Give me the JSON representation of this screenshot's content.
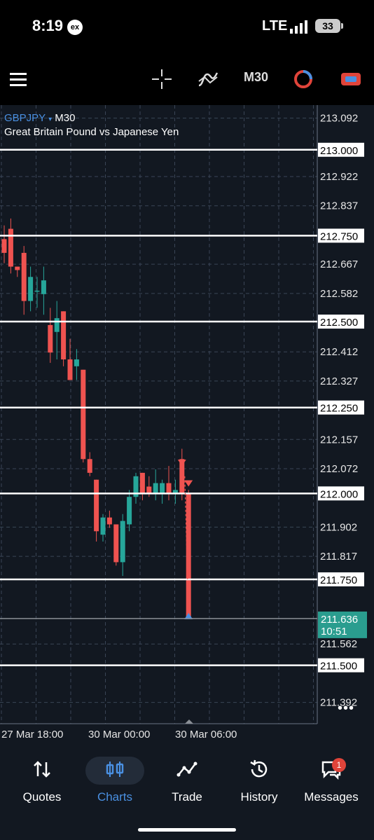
{
  "status_bar": {
    "time": "8:19",
    "app_badge": "ex",
    "network": "LTE",
    "battery": "33"
  },
  "toolbar": {
    "timeframe": "M30",
    "icons": [
      "menu-icon",
      "crosshair-icon",
      "indicators-icon",
      "timeframe",
      "chart-type-icon",
      "trade-icon"
    ]
  },
  "chart": {
    "symbol": "GBPJPY",
    "timeframe": "M30",
    "description": "Great Britain Pound vs Japanese Yen",
    "colors": {
      "bull": "#26a69a",
      "bear": "#ef5350",
      "bg": "#121821",
      "grid": "#3a4556",
      "current_price_bg": "#2a9d8f"
    },
    "price_scale": [
      "213.092",
      "212.922",
      "212.837",
      "212.667",
      "212.582",
      "212.412",
      "212.327",
      "212.157",
      "212.072",
      "211.902",
      "211.817",
      "211.562",
      "211.392"
    ],
    "levels": [
      "213.000",
      "212.750",
      "212.500",
      "212.250",
      "212.000",
      "211.750",
      "211.500"
    ],
    "current_price": {
      "value": "211.636",
      "countdown": "10:51"
    },
    "time_labels": [
      "27 Mar 18:00",
      "30 Mar 00:00",
      "30 Mar 06:00"
    ],
    "more": "•••"
  },
  "chart_data": {
    "type": "candlestick",
    "ylim": [
      211.33,
      213.13
    ],
    "levels": [
      213.0,
      212.75,
      212.5,
      212.25,
      212.0,
      211.75,
      211.5
    ],
    "candles": [
      {
        "o": 212.74,
        "h": 212.78,
        "l": 212.67,
        "c": 212.7
      },
      {
        "o": 212.77,
        "h": 212.8,
        "l": 212.64,
        "c": 212.66
      },
      {
        "o": 212.66,
        "h": 212.66,
        "l": 212.63,
        "c": 212.65
      },
      {
        "o": 212.7,
        "h": 212.72,
        "l": 212.52,
        "c": 212.56
      },
      {
        "o": 212.56,
        "h": 212.66,
        "l": 212.53,
        "c": 212.63
      },
      {
        "o": 212.59,
        "h": 212.63,
        "l": 212.54,
        "c": 212.59
      },
      {
        "o": 212.58,
        "h": 212.66,
        "l": 212.52,
        "c": 212.62
      },
      {
        "o": 212.49,
        "h": 212.54,
        "l": 212.38,
        "c": 212.41
      },
      {
        "o": 212.47,
        "h": 212.56,
        "l": 212.39,
        "c": 212.51
      },
      {
        "o": 212.53,
        "h": 212.53,
        "l": 212.37,
        "c": 212.39
      },
      {
        "o": 212.39,
        "h": 212.45,
        "l": 212.33,
        "c": 212.33
      },
      {
        "o": 212.37,
        "h": 212.42,
        "l": 212.33,
        "c": 212.39
      },
      {
        "o": 212.36,
        "h": 212.36,
        "l": 212.09,
        "c": 212.1
      },
      {
        "o": 212.1,
        "h": 212.12,
        "l": 212.05,
        "c": 212.06
      },
      {
        "o": 212.04,
        "h": 212.04,
        "l": 211.86,
        "c": 211.89
      },
      {
        "o": 211.88,
        "h": 211.94,
        "l": 211.86,
        "c": 211.93
      },
      {
        "o": 211.93,
        "h": 211.95,
        "l": 211.9,
        "c": 211.91
      },
      {
        "o": 211.91,
        "h": 211.91,
        "l": 211.79,
        "c": 211.8
      },
      {
        "o": 211.8,
        "h": 211.94,
        "l": 211.76,
        "c": 211.92
      },
      {
        "o": 211.91,
        "h": 212.01,
        "l": 211.89,
        "c": 211.99
      },
      {
        "o": 211.99,
        "h": 212.06,
        "l": 211.97,
        "c": 212.05
      },
      {
        "o": 212.06,
        "h": 212.06,
        "l": 211.98,
        "c": 212.0
      },
      {
        "o": 212.02,
        "h": 212.05,
        "l": 211.99,
        "c": 212.0
      },
      {
        "o": 212.0,
        "h": 212.07,
        "l": 211.98,
        "c": 212.03
      },
      {
        "o": 212.0,
        "h": 212.04,
        "l": 211.97,
        "c": 212.03
      },
      {
        "o": 212.03,
        "h": 212.08,
        "l": 211.98,
        "c": 212.0
      },
      {
        "o": 212.0,
        "h": 212.04,
        "l": 211.97,
        "c": 212.01
      },
      {
        "o": 212.1,
        "h": 212.13,
        "l": 211.98,
        "c": 212.0
      },
      {
        "o": 212.0,
        "h": 212.01,
        "l": 211.64,
        "c": 211.64
      }
    ]
  },
  "nav": [
    {
      "label": "Quotes",
      "icon": "quotes-icon"
    },
    {
      "label": "Charts",
      "icon": "charts-icon",
      "active": true
    },
    {
      "label": "Trade",
      "icon": "trade-icon"
    },
    {
      "label": "History",
      "icon": "history-icon"
    },
    {
      "label": "Messages",
      "icon": "messages-icon",
      "badge": "1"
    }
  ]
}
